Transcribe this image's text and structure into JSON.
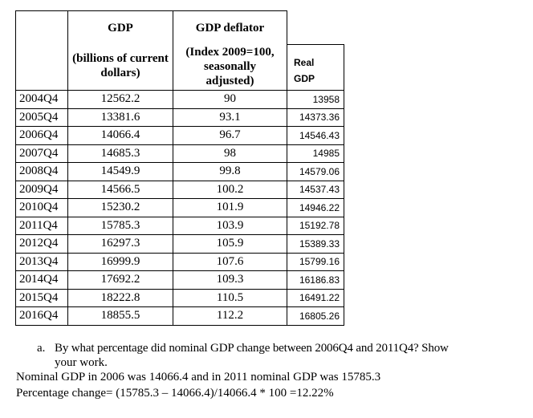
{
  "table": {
    "headers": {
      "gdp_title": "GDP",
      "gdp_sub": "(billions of current dollars)",
      "deflator_title": "GDP deflator",
      "deflator_sub": "(Index 2009=100, seasonally adjusted)",
      "real_gdp": "Real GDP"
    },
    "rows": [
      [
        "2004Q4",
        "12562.2",
        "90",
        "13958"
      ],
      [
        "2005Q4",
        "13381.6",
        "93.1",
        "14373.36"
      ],
      [
        "2006Q4",
        "14066.4",
        "96.7",
        "14546.43"
      ],
      [
        "2007Q4",
        "14685.3",
        "98",
        "14985"
      ],
      [
        "2008Q4",
        "14549.9",
        "99.8",
        "14579.06"
      ],
      [
        "2009Q4",
        "14566.5",
        "100.2",
        "14537.43"
      ],
      [
        "2010Q4",
        "15230.2",
        "101.9",
        "14946.22"
      ],
      [
        "2011Q4",
        "15785.3",
        "103.9",
        "15192.78"
      ],
      [
        "2012Q4",
        "16297.3",
        "105.9",
        "15389.33"
      ],
      [
        "2013Q4",
        "16999.9",
        "107.6",
        "15799.16"
      ],
      [
        "2014Q4",
        "17692.2",
        "109.3",
        "16186.83"
      ],
      [
        "2015Q4",
        "18222.8",
        "110.5",
        "16491.22"
      ],
      [
        "2016Q4",
        "18855.5",
        "112.2",
        "16805.26"
      ]
    ]
  },
  "question": {
    "marker": "a.",
    "line1": "By what percentage did nominal GDP change between 2006Q4 and 2011Q4?  Show",
    "line2": "your work."
  },
  "answer": {
    "line1": "Nominal GDP in 2006 was 14066.4 and in 2011 nominal GDP was 15785.3",
    "line2": "Percentage change= (15785.3 – 14066.4)/14066.4  * 100 =12.22%"
  }
}
